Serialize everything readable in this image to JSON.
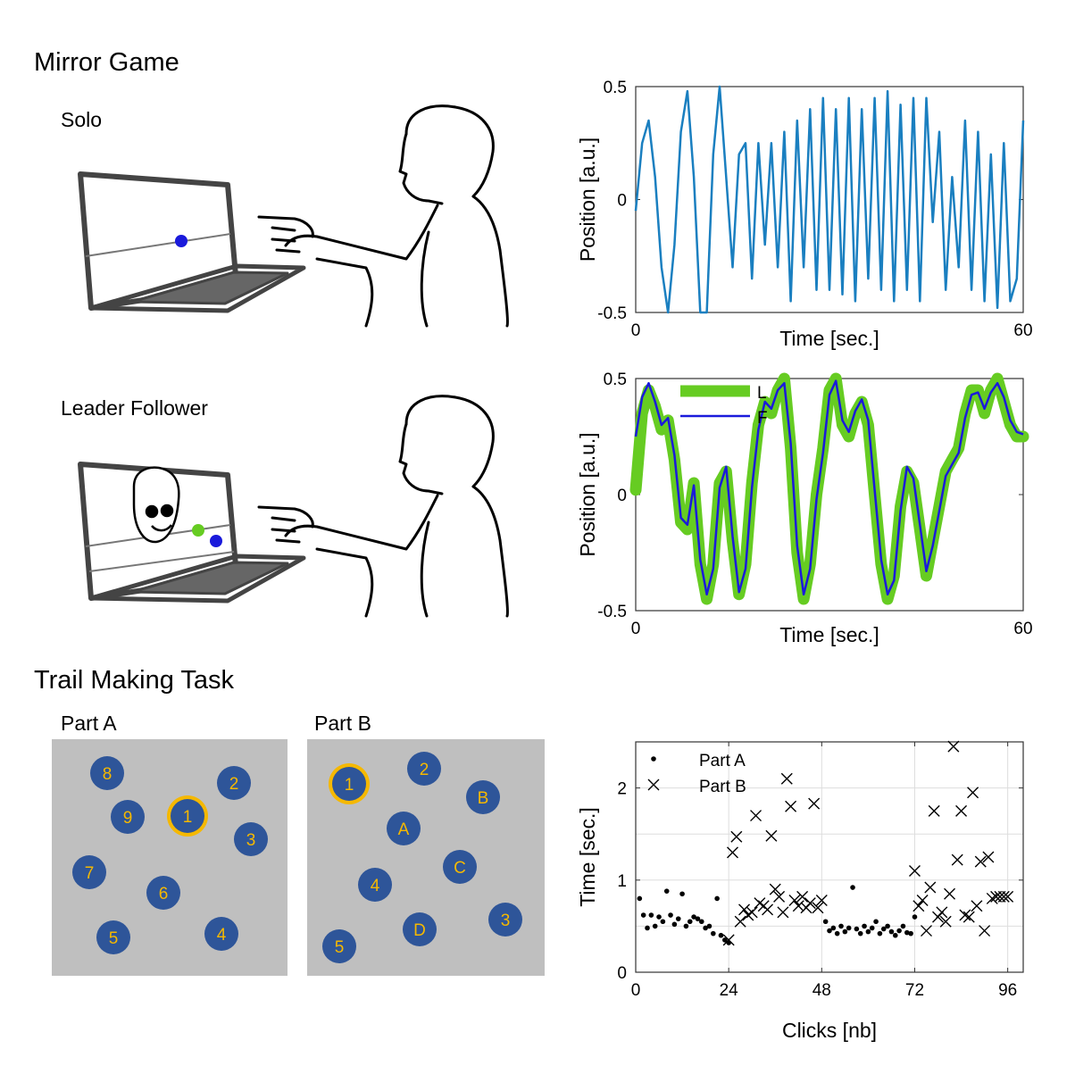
{
  "sections": {
    "mirror_game": "Mirror Game",
    "solo": "Solo",
    "leader_follower": "Leader Follower",
    "trail_making": "Trail Making Task",
    "part_a": "Part A",
    "part_b": "Part B"
  },
  "trail_a_nodes": [
    "8",
    "2",
    "9",
    "1",
    "3",
    "7",
    "6",
    "5",
    "4"
  ],
  "trail_b_nodes": [
    "1",
    "2",
    "B",
    "A",
    "C",
    "4",
    "3",
    "D",
    "5"
  ],
  "colors": {
    "solo_line": "#1a7fc0",
    "leader": "#66cc22",
    "follower": "#1a1adb",
    "node_fill": "#2e5599",
    "node_text": "#f5b800",
    "panel_bg": "#bfbfbf",
    "highlight_ring": "#f5b800"
  },
  "chart_data": [
    {
      "type": "line",
      "xlabel": "Time [sec.]",
      "ylabel": "Position [a.u.]",
      "xlim": [
        0,
        60
      ],
      "ylim": [
        -0.5,
        0.5
      ],
      "x_ticks": [
        "0",
        "60"
      ],
      "y_ticks": [
        "0.5",
        "0",
        "-0.5"
      ],
      "series": [
        {
          "x": [
            0,
            1,
            2,
            3,
            4,
            5,
            6,
            7,
            8,
            9,
            10,
            11,
            12,
            13,
            14,
            15,
            16,
            17,
            18,
            19,
            20,
            21,
            22,
            23,
            24,
            25,
            26,
            27,
            28,
            29,
            30,
            31,
            32,
            33,
            34,
            35,
            36,
            37,
            38,
            39,
            40,
            41,
            42,
            43,
            44,
            45,
            46,
            47,
            48,
            49,
            50,
            51,
            52,
            53,
            54,
            55,
            56,
            57,
            58,
            59,
            60
          ],
          "y": [
            -0.05,
            0.25,
            0.35,
            0.1,
            -0.3,
            -0.5,
            -0.2,
            0.3,
            0.48,
            0.1,
            -0.5,
            -0.5,
            0.2,
            0.5,
            0.1,
            -0.3,
            0.2,
            0.25,
            -0.35,
            0.25,
            -0.2,
            0.25,
            -0.3,
            0.3,
            -0.45,
            0.35,
            -0.3,
            0.4,
            -0.4,
            0.45,
            -0.4,
            0.4,
            -0.42,
            0.45,
            -0.45,
            0.4,
            -0.35,
            0.45,
            -0.4,
            0.48,
            -0.45,
            0.42,
            -0.4,
            0.45,
            -0.45,
            0.45,
            -0.1,
            0.3,
            -0.4,
            0.1,
            -0.3,
            0.35,
            -0.4,
            0.3,
            -0.45,
            0.2,
            -0.48,
            0.25,
            -0.45,
            -0.35,
            0.35
          ]
        }
      ]
    },
    {
      "type": "line",
      "xlabel": "Time [sec.]",
      "ylabel": "Position [a.u.]",
      "xlim": [
        0,
        60
      ],
      "ylim": [
        -0.5,
        0.5
      ],
      "x_ticks": [
        "0",
        "60"
      ],
      "y_ticks": [
        "0.5",
        "0",
        "-0.5"
      ],
      "series": [
        {
          "name": "L",
          "x": [
            0,
            1,
            2,
            3,
            4,
            5,
            6,
            7,
            8,
            9,
            10,
            11,
            12,
            13,
            14,
            15,
            16,
            17,
            18,
            19,
            20,
            21,
            22,
            23,
            24,
            25,
            26,
            27,
            28,
            29,
            30,
            31,
            32,
            33,
            34,
            35,
            36,
            37,
            38,
            39,
            40,
            41,
            42,
            43,
            44,
            45,
            46,
            47,
            48,
            49,
            50,
            51,
            52,
            53,
            54,
            55,
            56,
            57,
            58,
            59,
            60
          ],
          "y": [
            0.02,
            0.35,
            0.45,
            0.38,
            0.28,
            0.32,
            0.15,
            -0.12,
            -0.15,
            0.05,
            -0.3,
            -0.45,
            -0.3,
            0.05,
            0.1,
            -0.2,
            -0.43,
            -0.3,
            0.05,
            0.3,
            0.4,
            0.35,
            0.45,
            0.5,
            0.2,
            -0.25,
            -0.45,
            -0.3,
            0.0,
            0.2,
            0.45,
            0.5,
            0.3,
            0.25,
            0.35,
            0.4,
            0.3,
            0.0,
            -0.3,
            -0.45,
            -0.35,
            -0.05,
            0.1,
            0.05,
            -0.15,
            -0.35,
            -0.2,
            -0.05,
            0.1,
            0.15,
            0.2,
            0.35,
            0.45,
            0.45,
            0.35,
            0.45,
            0.5,
            0.4,
            0.3,
            0.25,
            0.25
          ]
        },
        {
          "name": "F",
          "x": [
            0,
            1,
            2,
            3,
            4,
            5,
            6,
            7,
            8,
            9,
            10,
            11,
            12,
            13,
            14,
            15,
            16,
            17,
            18,
            19,
            20,
            21,
            22,
            23,
            24,
            25,
            26,
            27,
            28,
            29,
            30,
            31,
            32,
            33,
            34,
            35,
            36,
            37,
            38,
            39,
            40,
            41,
            42,
            43,
            44,
            45,
            46,
            47,
            48,
            49,
            50,
            51,
            52,
            53,
            54,
            55,
            56,
            57,
            58,
            59,
            60
          ],
          "y": [
            0.25,
            0.42,
            0.48,
            0.4,
            0.3,
            0.33,
            0.17,
            -0.1,
            -0.13,
            0.04,
            -0.28,
            -0.43,
            -0.32,
            0.03,
            0.12,
            -0.18,
            -0.42,
            -0.32,
            0.03,
            0.28,
            0.4,
            0.37,
            0.45,
            0.48,
            0.22,
            -0.22,
            -0.43,
            -0.32,
            -0.02,
            0.18,
            0.43,
            0.49,
            0.32,
            0.27,
            0.36,
            0.41,
            0.32,
            0.02,
            -0.28,
            -0.43,
            -0.37,
            -0.07,
            0.12,
            0.07,
            -0.13,
            -0.33,
            -0.22,
            -0.07,
            0.08,
            0.13,
            0.18,
            0.33,
            0.43,
            0.44,
            0.37,
            0.44,
            0.48,
            0.42,
            0.32,
            0.27,
            0.26
          ]
        }
      ],
      "legend": "top-left"
    },
    {
      "type": "scatter",
      "xlabel": "Clicks [nb]",
      "ylabel": "Time [sec.]",
      "xlim": [
        0,
        100
      ],
      "ylim": [
        0,
        2.5
      ],
      "x_ticks": [
        "0",
        "24",
        "48",
        "72",
        "96"
      ],
      "y_ticks": [
        "0",
        "1",
        "2"
      ],
      "grid": true,
      "legend": "top-left",
      "series": [
        {
          "name": "Part A",
          "x": [
            1,
            2,
            3,
            4,
            5,
            6,
            7,
            8,
            9,
            10,
            11,
            12,
            13,
            14,
            15,
            16,
            17,
            18,
            19,
            20,
            21,
            22,
            23,
            24,
            49,
            50,
            51,
            52,
            53,
            54,
            55,
            56,
            57,
            58,
            59,
            60,
            61,
            62,
            63,
            64,
            65,
            66,
            67,
            68,
            69,
            70,
            71,
            72
          ],
          "y": [
            0.8,
            0.62,
            0.48,
            0.62,
            0.5,
            0.6,
            0.55,
            0.88,
            0.62,
            0.52,
            0.58,
            0.85,
            0.5,
            0.55,
            0.6,
            0.58,
            0.55,
            0.48,
            0.5,
            0.42,
            0.8,
            0.4,
            0.35,
            0.32,
            0.55,
            0.45,
            0.48,
            0.42,
            0.5,
            0.44,
            0.48,
            0.92,
            0.47,
            0.42,
            0.5,
            0.44,
            0.48,
            0.55,
            0.42,
            0.47,
            0.5,
            0.44,
            0.4,
            0.45,
            0.5,
            0.43,
            0.42,
            0.6
          ]
        },
        {
          "name": "Part B",
          "x": [
            24,
            25,
            26,
            27,
            28,
            29,
            30,
            31,
            32,
            33,
            34,
            35,
            36,
            37,
            38,
            39,
            40,
            41,
            42,
            43,
            44,
            45,
            46,
            47,
            48,
            72,
            73,
            74,
            75,
            76,
            77,
            78,
            79,
            80,
            81,
            82,
            83,
            84,
            85,
            86,
            87,
            88,
            89,
            90,
            91,
            92,
            93,
            94,
            95,
            96
          ],
          "y": [
            0.35,
            1.3,
            1.47,
            0.55,
            0.68,
            0.62,
            0.65,
            1.7,
            0.75,
            0.72,
            0.68,
            1.48,
            0.9,
            0.82,
            0.65,
            2.1,
            1.8,
            0.78,
            0.72,
            0.82,
            0.7,
            0.75,
            1.83,
            0.7,
            0.78,
            1.1,
            0.72,
            0.78,
            0.45,
            0.92,
            1.75,
            0.6,
            0.65,
            0.55,
            0.85,
            2.45,
            1.22,
            1.75,
            0.62,
            0.6,
            1.95,
            0.72,
            1.2,
            0.45,
            1.25,
            0.8,
            0.82,
            0.82,
            0.82,
            0.82
          ]
        }
      ]
    }
  ]
}
